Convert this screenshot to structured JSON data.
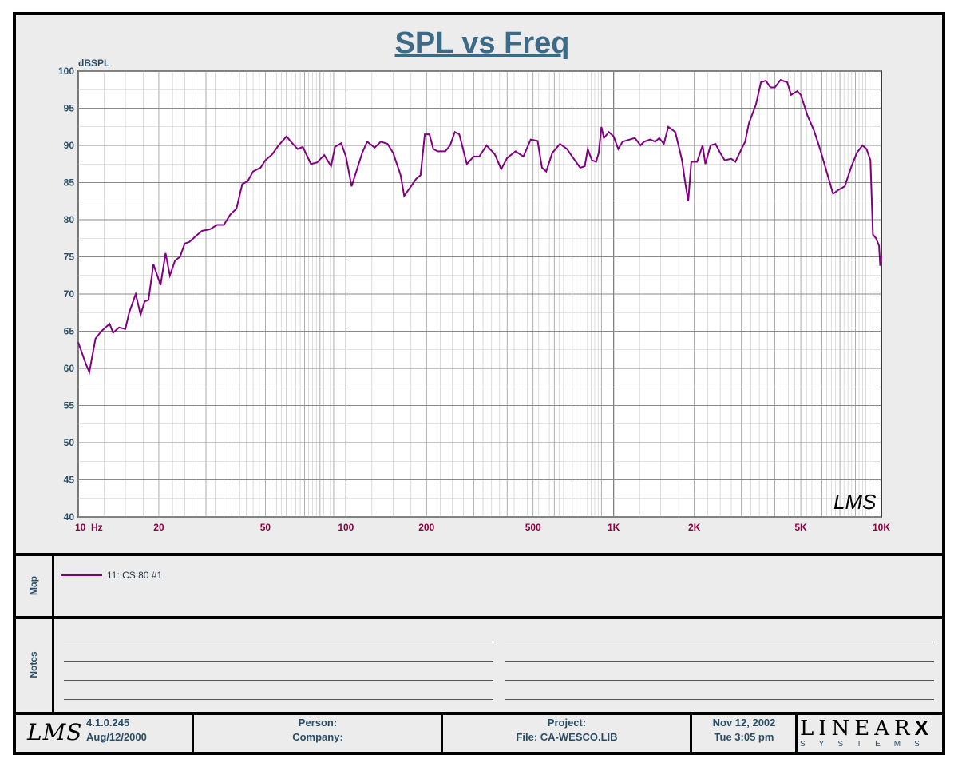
{
  "title": "SPL vs Freq",
  "chart_data": {
    "type": "line",
    "title": "SPL vs Freq",
    "ylabel": "dBSPL",
    "xlabel": "",
    "xscale": "log",
    "xlim": [
      10,
      10000
    ],
    "ylim": [
      40,
      100
    ],
    "grid": true,
    "y_ticks": [
      100,
      95,
      90,
      85,
      80,
      75,
      70,
      65,
      60,
      55,
      50,
      45,
      40
    ],
    "x_tick_labels": [
      {
        "f": 10,
        "label": "10  Hz"
      },
      {
        "f": 20,
        "label": "20"
      },
      {
        "f": 50,
        "label": "50"
      },
      {
        "f": 100,
        "label": "100"
      },
      {
        "f": 200,
        "label": "200"
      },
      {
        "f": 500,
        "label": "500"
      },
      {
        "f": 1000,
        "label": "1K"
      },
      {
        "f": 2000,
        "label": "2K"
      },
      {
        "f": 5000,
        "label": "5K"
      },
      {
        "f": 10000,
        "label": "10K"
      }
    ],
    "series": [
      {
        "name": "11: CS 80 #1",
        "color": "#800080",
        "points": [
          [
            10,
            63.5
          ],
          [
            10.7,
            60.5
          ],
          [
            11.0,
            59.5
          ],
          [
            11.6,
            64
          ],
          [
            12.2,
            65
          ],
          [
            13.1,
            66
          ],
          [
            13.5,
            64.8
          ],
          [
            14.2,
            65.5
          ],
          [
            15,
            65.3
          ],
          [
            15.5,
            67.5
          ],
          [
            16.4,
            70
          ],
          [
            17.1,
            67.2
          ],
          [
            17.7,
            69
          ],
          [
            18.3,
            69.2
          ],
          [
            19.1,
            74
          ],
          [
            20.3,
            71.2
          ],
          [
            21.2,
            75.5
          ],
          [
            22,
            72.5
          ],
          [
            23,
            74.5
          ],
          [
            24,
            75
          ],
          [
            25,
            76.8
          ],
          [
            26,
            77
          ],
          [
            27.5,
            77.8
          ],
          [
            29,
            78.5
          ],
          [
            31,
            78.7
          ],
          [
            33,
            79.3
          ],
          [
            35,
            79.3
          ],
          [
            37,
            80.7
          ],
          [
            39,
            81.5
          ],
          [
            41,
            84.8
          ],
          [
            43,
            85.2
          ],
          [
            45,
            86.5
          ],
          [
            48,
            87
          ],
          [
            50,
            88
          ],
          [
            53,
            88.8
          ],
          [
            56,
            90
          ],
          [
            60,
            91.2
          ],
          [
            63,
            90.3
          ],
          [
            66,
            89.5
          ],
          [
            69,
            89.8
          ],
          [
            74,
            87.5
          ],
          [
            78,
            87.7
          ],
          [
            83,
            88.7
          ],
          [
            88,
            87.2
          ],
          [
            91,
            89.8
          ],
          [
            96,
            90.3
          ],
          [
            100,
            88.5
          ],
          [
            105,
            84.5
          ],
          [
            115,
            89
          ],
          [
            120,
            90.5
          ],
          [
            128,
            89.7
          ],
          [
            135,
            90.5
          ],
          [
            143,
            90.2
          ],
          [
            150,
            89
          ],
          [
            160,
            86
          ],
          [
            165,
            83.2
          ],
          [
            175,
            84.5
          ],
          [
            183,
            85.5
          ],
          [
            190,
            86
          ],
          [
            197,
            91.5
          ],
          [
            205,
            91.5
          ],
          [
            212,
            89.5
          ],
          [
            220,
            89.2
          ],
          [
            235,
            89.2
          ],
          [
            245,
            90
          ],
          [
            255,
            91.8
          ],
          [
            265,
            91.5
          ],
          [
            283,
            87.5
          ],
          [
            300,
            88.5
          ],
          [
            315,
            88.5
          ],
          [
            335,
            90
          ],
          [
            360,
            88.8
          ],
          [
            380,
            86.8
          ],
          [
            400,
            88.3
          ],
          [
            430,
            89.2
          ],
          [
            460,
            88.5
          ],
          [
            490,
            90.8
          ],
          [
            520,
            90.6
          ],
          [
            540,
            87
          ],
          [
            560,
            86.5
          ],
          [
            590,
            89
          ],
          [
            630,
            90.2
          ],
          [
            670,
            89.5
          ],
          [
            700,
            88.5
          ],
          [
            750,
            87
          ],
          [
            780,
            87.2
          ],
          [
            800,
            89.5
          ],
          [
            830,
            88
          ],
          [
            860,
            87.8
          ],
          [
            880,
            89
          ],
          [
            900,
            92.5
          ],
          [
            920,
            91
          ],
          [
            960,
            91.8
          ],
          [
            1000,
            91.2
          ],
          [
            1040,
            89.5
          ],
          [
            1080,
            90.5
          ],
          [
            1150,
            90.8
          ],
          [
            1200,
            91
          ],
          [
            1260,
            90
          ],
          [
            1300,
            90.5
          ],
          [
            1370,
            90.8
          ],
          [
            1430,
            90.5
          ],
          [
            1480,
            91
          ],
          [
            1540,
            90.2
          ],
          [
            1600,
            92.5
          ],
          [
            1700,
            91.8
          ],
          [
            1800,
            88
          ],
          [
            1850,
            85
          ],
          [
            1900,
            82.5
          ],
          [
            1950,
            87.8
          ],
          [
            2050,
            87.8
          ],
          [
            2150,
            90
          ],
          [
            2200,
            87.5
          ],
          [
            2300,
            90
          ],
          [
            2400,
            90.2
          ],
          [
            2500,
            89
          ],
          [
            2600,
            88
          ],
          [
            2750,
            88.2
          ],
          [
            2850,
            87.8
          ],
          [
            3000,
            89.5
          ],
          [
            3100,
            90.5
          ],
          [
            3200,
            93
          ],
          [
            3400,
            95.5
          ],
          [
            3550,
            98.5
          ],
          [
            3700,
            98.7
          ],
          [
            3850,
            97.8
          ],
          [
            4000,
            97.8
          ],
          [
            4200,
            98.8
          ],
          [
            4450,
            98.5
          ],
          [
            4600,
            96.8
          ],
          [
            4850,
            97.3
          ],
          [
            5000,
            96.8
          ],
          [
            5300,
            94
          ],
          [
            5600,
            92
          ],
          [
            5900,
            89.5
          ],
          [
            6300,
            86
          ],
          [
            6600,
            83.5
          ],
          [
            6900,
            84
          ],
          [
            7300,
            84.5
          ],
          [
            7700,
            87
          ],
          [
            8100,
            89
          ],
          [
            8500,
            90
          ],
          [
            8800,
            89.5
          ],
          [
            9100,
            88
          ],
          [
            9300,
            78
          ],
          [
            9550,
            77.5
          ],
          [
            9800,
            76.5
          ],
          [
            9900,
            73.8
          ],
          [
            9950,
            74.5
          ],
          [
            10000,
            75.2
          ]
        ]
      }
    ]
  },
  "watermark": "LMS",
  "map": {
    "label": "Map",
    "legend_entry": "11: CS 80 #1"
  },
  "notes": {
    "label": "Notes"
  },
  "footer": {
    "logo": "LMS",
    "version": "4.1.0.245",
    "build_date": "Aug/12/2000",
    "person_label": "Person:",
    "company_label": "Company:",
    "project_label": "Project:",
    "file_label": "File: CA-WESCO.LIB",
    "date": "Nov 12, 2002",
    "time": "Tue  3:05 pm",
    "brand_main": "LINEAR",
    "brand_x": "X",
    "brand_sub": "SYSTEMS"
  },
  "colors": {
    "title": "#3d6a86",
    "axis_text": "#2a4e66",
    "x_tick_text": "#8b0040",
    "curve": "#800080"
  }
}
